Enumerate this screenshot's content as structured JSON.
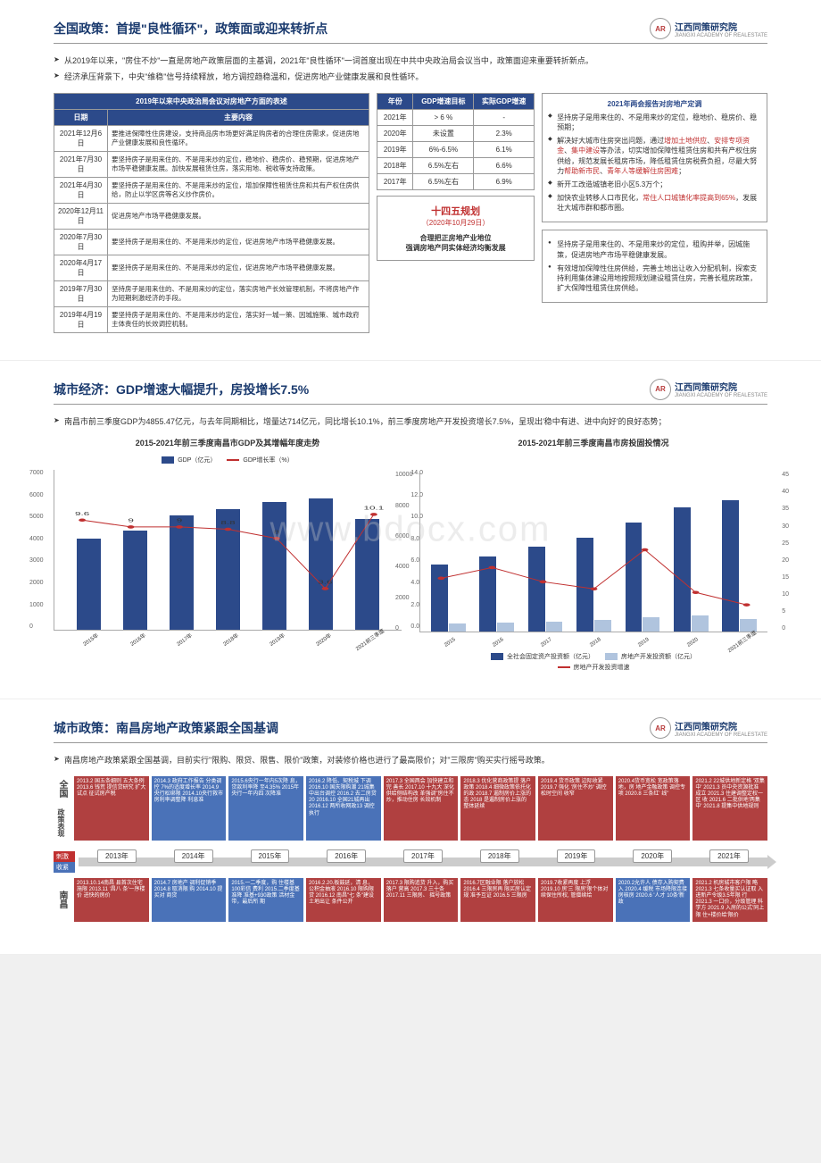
{
  "logo": {
    "icon": "AR",
    "text": "江西同策研究院",
    "sub": "JIANGXI ACADEMY OF REALESTATE"
  },
  "slide1": {
    "title": "全国政策：首提\"良性循环\"，政策面或迎来转折点",
    "bullets": [
      "从2019年以来，\"房住不炒\"一直是房地产政策层面的主基调，2021年\"良性循环\"一词首度出现在中共中央政治局会议当中，政策面迎来重要转折新点。",
      "经济承压背景下，中央\"维稳\"信号持续释放，地方调控趋稳温和，促进房地产业健康发展和良性循环。"
    ],
    "table1_header": "2019年以来中央政治局会议对房地产方面的表述",
    "table1_cols": [
      "日期",
      "主要内容"
    ],
    "table1_rows": [
      [
        "2021年12月6日",
        "要推进保障性住房建设，支持商品房市场更好满足购房者的合理住房需求，促进房地产业健康发展和良性循环。"
      ],
      [
        "2021年7月30日",
        "要坚持房子是用来住的、不是用来炒的定位，稳地价、稳房价、稳预期，促进房地产市场平稳健康发展。加快发展租赁住房，落实用地、税收等支持政策。"
      ],
      [
        "2021年4月30日",
        "要坚持房子是用来住的、不是用来炒的定位，增加保障性租赁住房和共有产权住房供给，防止以学区房等名义炒作房价。"
      ],
      [
        "2020年12月11日",
        "促进房地产市场平稳健康发展。"
      ],
      [
        "2020年7月30日",
        "要坚持房子是用来住的、不是用来炒的定位，促进房地产市场平稳健康发展。"
      ],
      [
        "2020年4月17日",
        "要坚持房子是用来住的、不是用来炒的定位，促进房地产市场平稳健康发展。"
      ],
      [
        "2019年7月30日",
        "坚持房子是用来住的、不是用来炒的定位，落实房地产长效管理机制，不将房地产作为短期刺激经济的手段。"
      ],
      [
        "2019年4月19日",
        "要坚持房子是用来住的、不是用来炒的定位，落实好一城一策、因城施策、城市政府主体责任的长效调控机制。"
      ]
    ],
    "table2_cols": [
      "年份",
      "GDP增速目标",
      "实际GDP增速"
    ],
    "table2_rows": [
      [
        "2021年",
        "> 6 %",
        "-"
      ],
      [
        "2020年",
        "未设置",
        "2.3%"
      ],
      [
        "2019年",
        "6%-6.5%",
        "6.1%"
      ],
      [
        "2018年",
        "6.5%左右",
        "6.6%"
      ],
      [
        "2017年",
        "6.5%左右",
        "6.9%"
      ]
    ],
    "plan": {
      "title": "十四五规划",
      "date": "（2020年10月29日）",
      "t1": "合理把正房地产业地位",
      "t2": "强调房地产同实体经济均衡发展"
    },
    "right_title": "2021年两会报告对房地产定调",
    "right_items": [
      "坚持房子是用来住的、不是用来炒的定位，稳地价、稳房价、稳预期；",
      "解决好大城市住房突出问题，通过增加土地供应、安排专项资金、集中建设等办法，切实增加保障性租赁住房和共有产权住房供给，规范发展长租房市场，降低租赁住房税费负担，尽最大努力帮助新市民、青年人等缓解住房困难；",
      "新开工改造城镇老旧小区5.3万个；",
      "加快农业转移人口市民化，常住人口城镇化率提高到65%，发展壮大城市群和都市圈。"
    ],
    "right2_items": [
      "坚持房子是用来住的、不是用来炒的定位，租购并举，因城施策，促进房地产市场平稳健康发展。",
      "有效增加保障性住房供给，完善土地出让收入分配机制，探索支持利用集体建设用地按照规划建设租赁住房，完善长租房政策，扩大保障性租赁住房供给。"
    ]
  },
  "slide2": {
    "title": "城市经济：GDP增速大幅提升，房投增长7.5%",
    "bullets": [
      "南昌市前三季度GDP为4855.47亿元，与去年同期相比，增量达714亿元，同比增长10.1%，前三季度房地产开发投资增长7.5%，呈现出'稳中有进、进中向好'的良好态势；"
    ],
    "chart1": {
      "title": "2015-2021年前三季度南昌市GDP及其增幅年度走势",
      "type": "bar-line",
      "legend": [
        "GDP（亿元）",
        "GDP增长率（%）"
      ],
      "categories": [
        "2015年",
        "2016年",
        "2017年",
        "2018年",
        "2019年",
        "2020年",
        "2021前三季度"
      ],
      "bar_values": [
        4000,
        4355,
        5003,
        5275,
        5596,
        5746,
        4855
      ],
      "bar_max": 7000,
      "line_values": [
        9.6,
        9.0,
        9.0,
        8.8,
        8.0,
        3.6,
        10.1
      ],
      "line_max": 14,
      "bar_color": "#2c4a8a",
      "line_color": "#c03030",
      "y_ticks": [
        0,
        1000,
        2000,
        3000,
        4000,
        5000,
        6000,
        7000
      ],
      "y_ticks_r": [
        0.0,
        2.0,
        4.0,
        6.0,
        8.0,
        10.0,
        12.0,
        14.0
      ]
    },
    "chart2": {
      "title": "2015-2021年前三季度南昌市房投固投情况",
      "type": "dual-bar-line",
      "legend": [
        "全社会固定资产投资额（亿元）",
        "房地产开发投资额（亿元）",
        "房地产开发投资增速"
      ],
      "categories": [
        "2015",
        "2016",
        "2017",
        "2018",
        "2019",
        "2020",
        "2021前三季度"
      ],
      "bar1_values": [
        4200,
        4700,
        5300,
        5900,
        6800,
        7800,
        8200
      ],
      "bar2_values": [
        500,
        570,
        650,
        730,
        900,
        1000,
        800
      ],
      "bar_max": 10000,
      "line_values": [
        15,
        18,
        14,
        12,
        23,
        11,
        7.5
      ],
      "line_max": 45,
      "bar1_color": "#2c4a8a",
      "bar2_color": "#b0c4de",
      "line_color": "#c03030",
      "y_ticks": [
        0,
        2000,
        4000,
        6000,
        8000,
        10000
      ],
      "y_ticks_r": [
        0,
        5,
        10,
        15,
        20,
        25,
        30,
        35,
        40,
        45
      ]
    }
  },
  "slide3": {
    "title": "城市政策：南昌房地产政策紧跟全国基调",
    "bullets": [
      "南昌房地产政策紧跟全国基调，目前实行\"限购、限贷、限售、限价\"政策，对装修价格也进行了最高限价；对\"三限房\"购买实行摇号政策。"
    ],
    "top_label": "全国",
    "sub_label": "政策表现",
    "bottom_label": "南昌",
    "stim": "刺激",
    "tight": "收紧",
    "years": [
      "2013年",
      "2014年",
      "2015年",
      "2016年",
      "2017年",
      "2018年",
      "2019年",
      "2020年",
      "2021年"
    ],
    "top_boxes": [
      {
        "c": "dred-box",
        "t": "2013.2 国五条细则\n五大条例\n2013.6 钱荒\n提信贷研究\n扩大试点\n征试房产税"
      },
      {
        "c": "blue-box",
        "t": "2014.3 政府工作报告\n分类调控\n7%的适度增长率\n2014.9央行松绑限\n2014.10央行救市\n房利率调整降\n利息准"
      },
      {
        "c": "blue-box",
        "t": "2015.6央行一年内5次降\n息，贷款利率降\n至4.35%\n2015年央行一年内四\n次降准"
      },
      {
        "c": "blue-box",
        "t": "2016.2 降低、契税城\n下调\n2016.10 国庆限购潮\n21城集中出台调控\n2016.2 去二房贷20\n2016.10 全国21城再出\n2016.12 两所收网政13\n调控执行"
      },
      {
        "c": "dred-box",
        "t": "2017.3 全国两会\n加快建立和完\n善长\n2017.10 十九大\n深化供给侧结构改\n革强调\"房住不\n炒，推动住房\n长效机制"
      },
      {
        "c": "dred-box",
        "t": "2018.3 优化营商政策提\n落户政策\n2018.4 细微政策依托化\n的政\n2018.7 遏制房价上涨的\n态\n2018 是遏制房价上涨的\n整体延续"
      },
      {
        "c": "dred-box",
        "t": "2019.4 货币政策\n边际收紧\n2019.7 强化\n'房住不炒'\n调控松时空间\n收窄"
      },
      {
        "c": "dred-box",
        "t": "2020.4货币宽松\n宽政策落地，房\n地产金融政策\n调控专项\n2020.8 三条红'\n线\""
      },
      {
        "c": "dred-box",
        "t": "2021.2 22城供地新定格\n'双集中'\n2021.3 员中央资源批准\n成立\n2021.3 住建调整定权一区\n收\n2021.6 二批供地'两集中'\n2021.8 提集中供地规则"
      }
    ],
    "bottom_boxes": [
      {
        "c": "dred-box",
        "t": "2013.10.14南昌\n县首次住宅\n施限\n2013.11 '昌八\n条'一序楼价\n进快的房价"
      },
      {
        "c": "blue-box",
        "t": "2014.7 房地产\n调利促销季\n2014.8 取消限\n购\n2014.10 提买对\n商贷"
      },
      {
        "c": "blue-box",
        "t": "2015.一二季度，购\n住楼基100彩信\n费利\n2015.二季度基准降\n准基+930政策\n活材金带，最后所\n期"
      },
      {
        "c": "dred-box",
        "t": "2016.2.20.板鼓延，清\n息，公积金抽液\n2016.10 限购限贷\n2016.12 南昌\"七\n条\"建设土地出让\n条件公开"
      },
      {
        "c": "dred-box",
        "t": "2017.3 限购追货\n升入，购买落户\n营高\n2017.3 三十条\n2017.11 三限房、\n摇号政策"
      },
      {
        "c": "dred-box",
        "t": "2016.7区融业限\n落户放松\n2016.4 三限房再\n限买房认定规\n准予互证\n2016.5 三限房"
      },
      {
        "c": "dred-box",
        "t": "2019.7收紧再度\n上浮\n2019.10 房'三\n限房'限个体对\n续保住所权,\n管僧续给"
      },
      {
        "c": "blue-box",
        "t": "2020.2允许人\n债存入购契费\n入\n2020.4 缓税\n市场降限连接\n房核房\n2020.6 '人才\n10条'新政"
      },
      {
        "c": "dred-box",
        "t": "2021.2 机房城市客户限\n略\n2021.3 七条收量买认证取\n入进新产令级3.5年限\n行\n2021.3 一口价，分级管理\n科学方\n2021.9 入房的公式'同上限\n住+楼价给'限价"
      }
    ]
  }
}
